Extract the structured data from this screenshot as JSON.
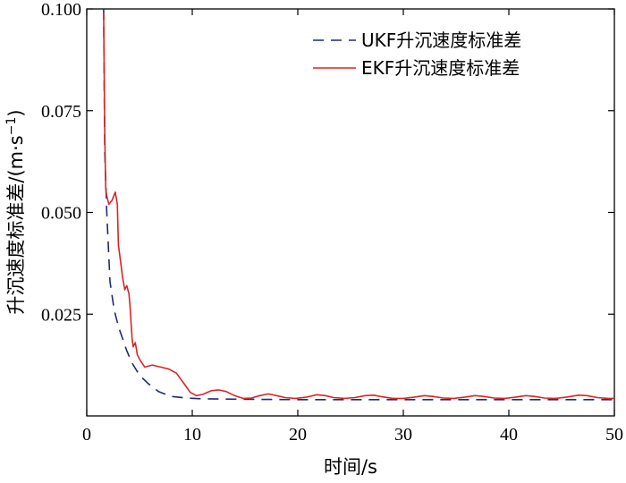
{
  "chart_data": {
    "type": "line",
    "xlabel": "时间/s",
    "ylabel": "升沉速度标准差/(m·s",
    "ylabel_sup": "−1",
    "ylabel_close": ")",
    "xlim": [
      0,
      50
    ],
    "ylim": [
      0,
      0.1
    ],
    "x_ticks": [
      0,
      10,
      20,
      30,
      40,
      50
    ],
    "x_tick_labels": [
      "0",
      "10",
      "20",
      "30",
      "40",
      "50"
    ],
    "y_ticks": [
      0.025,
      0.05,
      0.075,
      0.1
    ],
    "y_tick_labels": [
      "0.025",
      "0.050",
      "0.075",
      "0.100"
    ],
    "legend_position": "top-right",
    "grid": false,
    "series": [
      {
        "name": "UKF升沉速度标准差",
        "style": "dashed",
        "color": "#1f2a7a",
        "points": [
          [
            1.6,
            0.1
          ],
          [
            1.7,
            0.065
          ],
          [
            1.9,
            0.05
          ],
          [
            2.2,
            0.033
          ],
          [
            2.6,
            0.026
          ],
          [
            3.0,
            0.022
          ],
          [
            3.4,
            0.019
          ],
          [
            3.8,
            0.016
          ],
          [
            4.3,
            0.013
          ],
          [
            5.0,
            0.01
          ],
          [
            5.8,
            0.008
          ],
          [
            6.8,
            0.006
          ],
          [
            8,
            0.0048
          ],
          [
            9.5,
            0.0044
          ],
          [
            11,
            0.0042
          ],
          [
            14,
            0.0041
          ],
          [
            20,
            0.004
          ],
          [
            30,
            0.004
          ],
          [
            40,
            0.004
          ],
          [
            50,
            0.004
          ]
        ]
      },
      {
        "name": "EKF升沉速度标准差",
        "style": "solid",
        "color": "#d62728",
        "points": [
          [
            1.6,
            0.099
          ],
          [
            1.7,
            0.07
          ],
          [
            1.8,
            0.056
          ],
          [
            1.9,
            0.054
          ],
          [
            2.1,
            0.052
          ],
          [
            2.4,
            0.053
          ],
          [
            2.7,
            0.055
          ],
          [
            2.9,
            0.052
          ],
          [
            3.0,
            0.042
          ],
          [
            3.2,
            0.038
          ],
          [
            3.4,
            0.034
          ],
          [
            3.6,
            0.031
          ],
          [
            3.8,
            0.032
          ],
          [
            4.0,
            0.03
          ],
          [
            4.1,
            0.027
          ],
          [
            4.3,
            0.019
          ],
          [
            4.4,
            0.017
          ],
          [
            4.6,
            0.018
          ],
          [
            4.8,
            0.015
          ],
          [
            5.1,
            0.0135
          ],
          [
            5.5,
            0.012
          ],
          [
            6.2,
            0.0125
          ],
          [
            7.0,
            0.012
          ],
          [
            7.8,
            0.0115
          ],
          [
            8.5,
            0.0105
          ],
          [
            9.2,
            0.008
          ],
          [
            9.8,
            0.0058
          ],
          [
            10.4,
            0.005
          ],
          [
            11.0,
            0.0053
          ],
          [
            11.8,
            0.0062
          ],
          [
            12.5,
            0.0064
          ],
          [
            13.2,
            0.006
          ],
          [
            14.0,
            0.005
          ],
          [
            14.8,
            0.0043
          ],
          [
            15.6,
            0.0044
          ],
          [
            16.4,
            0.005
          ],
          [
            17.2,
            0.0054
          ],
          [
            18.0,
            0.005
          ],
          [
            18.8,
            0.0045
          ],
          [
            19.8,
            0.0043
          ],
          [
            20.8,
            0.0046
          ],
          [
            21.8,
            0.0052
          ],
          [
            22.6,
            0.005
          ],
          [
            23.4,
            0.0045
          ],
          [
            24.4,
            0.0043
          ],
          [
            25.4,
            0.0045
          ],
          [
            26.4,
            0.005
          ],
          [
            27.2,
            0.0051
          ],
          [
            28.0,
            0.0047
          ],
          [
            29.0,
            0.0043
          ],
          [
            30.0,
            0.0043
          ],
          [
            31.0,
            0.0046
          ],
          [
            32.0,
            0.005
          ],
          [
            32.8,
            0.0048
          ],
          [
            33.8,
            0.0044
          ],
          [
            34.8,
            0.0043
          ],
          [
            35.8,
            0.0046
          ],
          [
            36.8,
            0.005
          ],
          [
            37.6,
            0.0048
          ],
          [
            38.6,
            0.0044
          ],
          [
            39.6,
            0.0043
          ],
          [
            40.6,
            0.0046
          ],
          [
            41.6,
            0.005
          ],
          [
            42.4,
            0.0048
          ],
          [
            43.4,
            0.0044
          ],
          [
            44.4,
            0.0043
          ],
          [
            45.4,
            0.0046
          ],
          [
            46.6,
            0.0051
          ],
          [
            47.4,
            0.005
          ],
          [
            48.4,
            0.0045
          ],
          [
            49.4,
            0.0043
          ],
          [
            50,
            0.0043
          ]
        ]
      }
    ]
  }
}
